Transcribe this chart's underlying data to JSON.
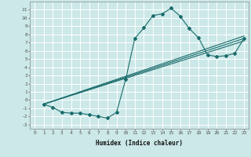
{
  "title": "",
  "xlabel": "Humidex (Indice chaleur)",
  "ylabel": "",
  "background_color": "#cce8e8",
  "grid_color": "#ffffff",
  "line_color": "#1a6b6b",
  "xlim": [
    -0.5,
    23.5
  ],
  "ylim": [
    -3.5,
    12.0
  ],
  "xticks": [
    0,
    1,
    2,
    3,
    4,
    5,
    6,
    7,
    8,
    9,
    10,
    11,
    12,
    13,
    14,
    15,
    16,
    17,
    18,
    19,
    20,
    21,
    22,
    23
  ],
  "yticks": [
    -3,
    -2,
    -1,
    0,
    1,
    2,
    3,
    4,
    5,
    6,
    7,
    8,
    9,
    10,
    11
  ],
  "series1_x": [
    1,
    2,
    3,
    4,
    5,
    6,
    7,
    8,
    9,
    10,
    11,
    12,
    13,
    14,
    15,
    16,
    17,
    18,
    19,
    20,
    21,
    22,
    23
  ],
  "series1_y": [
    -0.5,
    -0.9,
    -1.5,
    -1.6,
    -1.6,
    -1.8,
    -2.0,
    -2.2,
    -1.5,
    2.5,
    7.5,
    8.8,
    10.3,
    10.5,
    11.2,
    10.2,
    8.7,
    7.6,
    5.5,
    5.3,
    5.4,
    5.7,
    7.5
  ],
  "series2_x": [
    1,
    23
  ],
  "series2_y": [
    -0.5,
    7.5
  ],
  "series3_x": [
    1,
    23
  ],
  "series3_y": [
    -0.5,
    7.8
  ],
  "series4_x": [
    1,
    23
  ],
  "series4_y": [
    -0.5,
    7.2
  ]
}
